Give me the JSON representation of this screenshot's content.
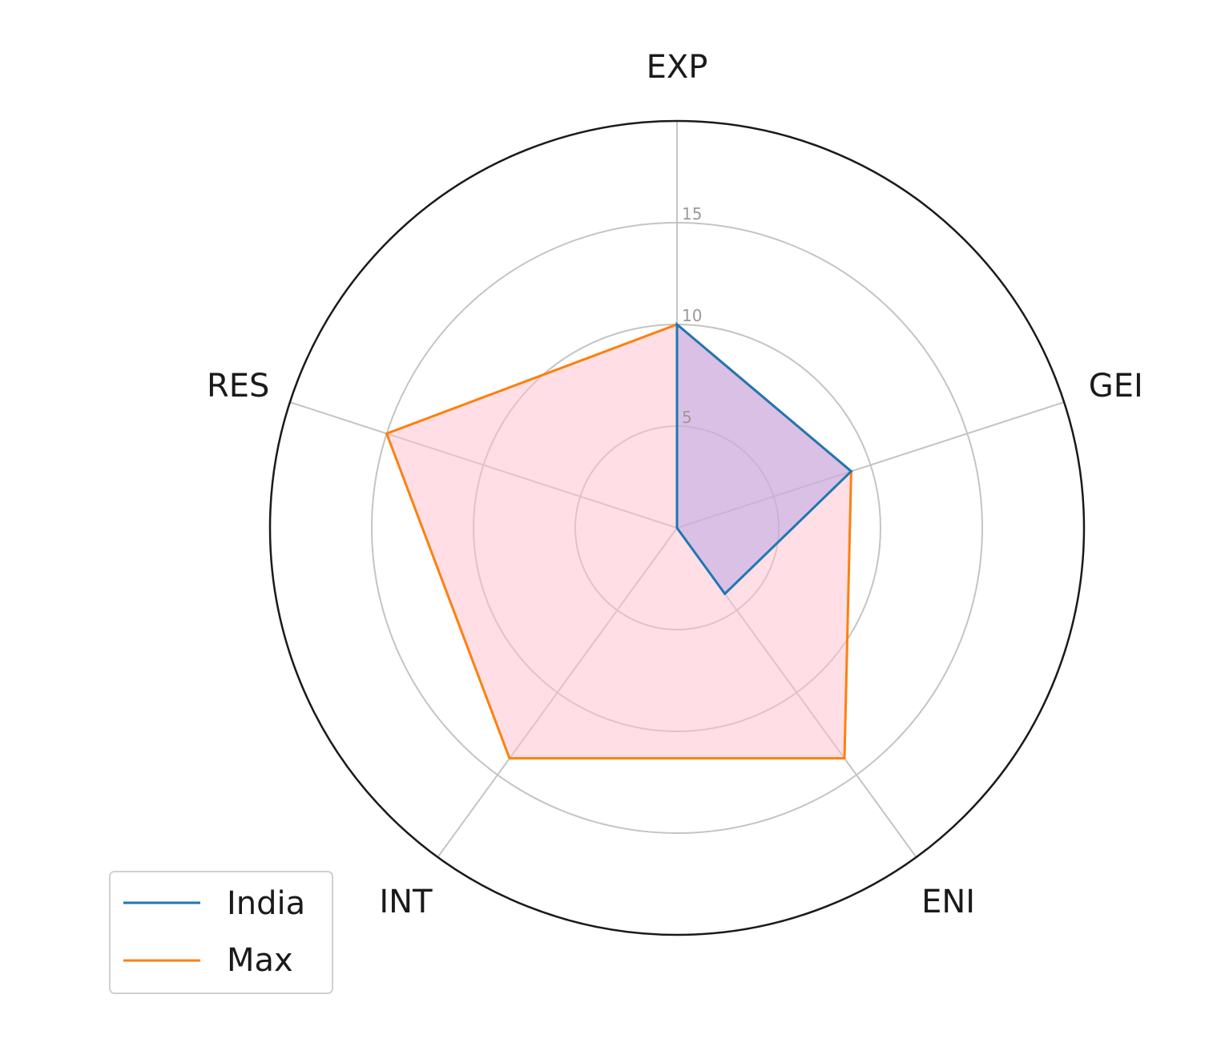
{
  "chart_data": {
    "type": "radar",
    "title": "",
    "categories": [
      "EXP",
      "GEI",
      "ENI",
      "INT",
      "RES"
    ],
    "rlim": [
      0,
      20
    ],
    "rticks": [
      5,
      10,
      15
    ],
    "grid": true,
    "legend_position": "lower-left",
    "series": [
      {
        "name": "India",
        "values": [
          10,
          9,
          4,
          0,
          0
        ],
        "color": "#1f77b4",
        "fill": "#b8a2e6"
      },
      {
        "name": "Max",
        "values": [
          10,
          9,
          14,
          14,
          15
        ],
        "color": "#ff7f0e",
        "fill": "#ffc0cb"
      }
    ]
  }
}
